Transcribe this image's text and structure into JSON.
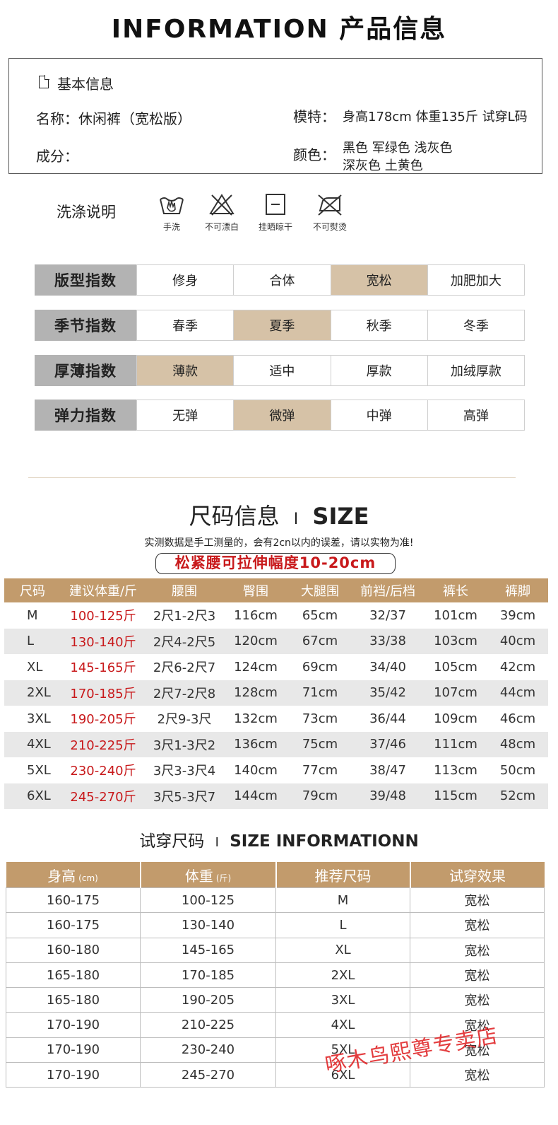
{
  "header": {
    "title": "INFORMATION 产品信息"
  },
  "basic_info": {
    "section_label": "基本信息",
    "name": "名称：休闲裤（宽松版）",
    "composition": "成分：",
    "model_label": "模特：",
    "model_value": "身高178cm 体重135斤 试穿L码",
    "color_label": "颜色：",
    "color_line1": "黑色  军绿色  浅灰色",
    "color_line2": "深灰色  土黄色"
  },
  "washing": {
    "title": "洗涤说明",
    "items": [
      {
        "icon": "hand-wash-icon",
        "label": "手洗"
      },
      {
        "icon": "no-bleach-icon",
        "label": "不可漂白"
      },
      {
        "icon": "hang-dry-icon",
        "label": "挂晒晾干"
      },
      {
        "icon": "no-iron-icon",
        "label": "不可熨烫"
      }
    ]
  },
  "indices": [
    {
      "label": "版型指数",
      "options": [
        "修身",
        "合体",
        "宽松",
        "加肥加大"
      ],
      "selected": 2
    },
    {
      "label": "季节指数",
      "options": [
        "春季",
        "夏季",
        "秋季",
        "冬季"
      ],
      "selected": 1
    },
    {
      "label": "厚薄指数",
      "options": [
        "薄款",
        "适中",
        "厚款",
        "加绒厚款"
      ],
      "selected": 0
    },
    {
      "label": "弹力指数",
      "options": [
        "无弹",
        "微弹",
        "中弹",
        "高弹"
      ],
      "selected": 1
    }
  ],
  "colors": {
    "accent": "#c29b6c",
    "selected": "#d6c2a7",
    "label_bg": "#b3b3b3",
    "red": "#c8191b"
  },
  "size_section": {
    "title_cn": "尺码信息",
    "title_sep": "I",
    "title_en": "SIZE",
    "note": "实测数据是手工测量的，会有2cn以内的误差，请以实物为准!",
    "highlight": "松紧腰可拉伸幅度10-20cm",
    "headers": [
      "尺码",
      "建议体重/斤",
      "腰围",
      "臀围",
      "大腿围",
      "前裆/后档",
      "裤长",
      "裤脚"
    ],
    "rows": [
      [
        "M",
        "100-125斤",
        "2尺1-2尺3",
        "116cm",
        "65cm",
        "32/37",
        "101cm",
        "39cm"
      ],
      [
        "L",
        "130-140斤",
        "2尺4-2尺5",
        "120cm",
        "67cm",
        "33/38",
        "103cm",
        "40cm"
      ],
      [
        "XL",
        "145-165斤",
        "2尺6-2尺7",
        "124cm",
        "69cm",
        "34/40",
        "105cm",
        "42cm"
      ],
      [
        "2XL",
        "170-185斤",
        "2尺7-2尺8",
        "128cm",
        "71cm",
        "35/42",
        "107cm",
        "44cm"
      ],
      [
        "3XL",
        "190-205斤",
        "2尺9-3尺",
        "132cm",
        "73cm",
        "36/44",
        "109cm",
        "46cm"
      ],
      [
        "4XL",
        "210-225斤",
        "3尺1-3尺2",
        "136cm",
        "75cm",
        "37/46",
        "111cm",
        "48cm"
      ],
      [
        "5XL",
        "230-240斤",
        "3尺3-3尺4",
        "140cm",
        "77cm",
        "38/47",
        "113cm",
        "50cm"
      ],
      [
        "6XL",
        "245-270斤",
        "3尺5-3尺7",
        "144cm",
        "79cm",
        "39/48",
        "115cm",
        "52cm"
      ]
    ]
  },
  "try_section": {
    "title_cn": "试穿尺码",
    "title_sep": "I",
    "title_en": "SIZE INFORMATIONN",
    "headers": [
      {
        "label": "身高",
        "unit": "(cm)"
      },
      {
        "label": "体重",
        "unit": "(斤)"
      },
      {
        "label": "推荐尺码",
        "unit": ""
      },
      {
        "label": "试穿效果",
        "unit": ""
      }
    ],
    "rows": [
      [
        "160-175",
        "100-125",
        "M",
        "宽松"
      ],
      [
        "160-175",
        "130-140",
        "L",
        "宽松"
      ],
      [
        "160-180",
        "145-165",
        "XL",
        "宽松"
      ],
      [
        "165-180",
        "170-185",
        "2XL",
        "宽松"
      ],
      [
        "165-180",
        "190-205",
        "3XL",
        "宽松"
      ],
      [
        "170-190",
        "210-225",
        "4XL",
        "宽松"
      ],
      [
        "170-190",
        "230-240",
        "5XL",
        "宽松"
      ],
      [
        "170-190",
        "245-270",
        "6XL",
        "宽松"
      ]
    ]
  },
  "watermark": "啄木鸟熙尊专卖店"
}
